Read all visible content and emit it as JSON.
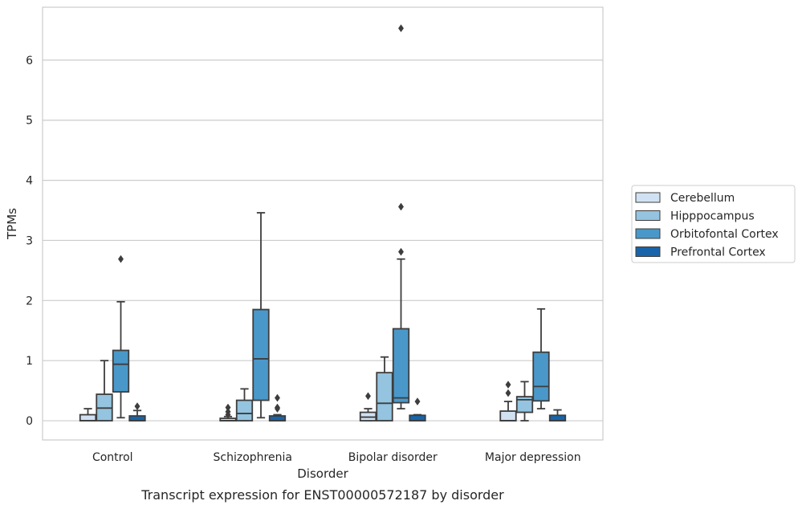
{
  "chart_data": {
    "type": "box",
    "title": "Transcript expression for ENST00000572187 by disorder",
    "xlabel": "Disorder",
    "ylabel": "TPMs",
    "ylim": [
      -0.32,
      6.88
    ],
    "yticks": [
      0,
      1,
      2,
      3,
      4,
      5,
      6
    ],
    "grid": "horizontal",
    "legend_position": "right",
    "categories": [
      "Control",
      "Schizophrenia",
      "Bipolar disorder",
      "Major depression"
    ],
    "series": [
      {
        "name": "Cerebellum",
        "color": "#d0e1f2",
        "boxes": [
          {
            "whislo": 0,
            "q1": 0,
            "med": 0,
            "q3": 0.1,
            "whishi": 0.2,
            "fliers": []
          },
          {
            "whislo": 0,
            "q1": 0,
            "med": 0,
            "q3": 0.04,
            "whishi": 0.07,
            "fliers": [
              0.1,
              0.15,
              0.22
            ]
          },
          {
            "whislo": 0,
            "q1": 0,
            "med": 0.06,
            "q3": 0.14,
            "whishi": 0.2,
            "fliers": [
              0.41
            ]
          },
          {
            "whislo": 0,
            "q1": 0,
            "med": 0,
            "q3": 0.16,
            "whishi": 0.32,
            "fliers": [
              0.46,
              0.6
            ]
          }
        ]
      },
      {
        "name": "Hipppocampus",
        "color": "#94c4df",
        "boxes": [
          {
            "whislo": 0,
            "q1": 0,
            "med": 0.21,
            "q3": 0.44,
            "whishi": 1.0,
            "fliers": []
          },
          {
            "whislo": 0,
            "q1": 0,
            "med": 0.12,
            "q3": 0.34,
            "whishi": 0.53,
            "fliers": []
          },
          {
            "whislo": 0,
            "q1": 0,
            "med": 0.29,
            "q3": 0.8,
            "whishi": 1.06,
            "fliers": []
          },
          {
            "whislo": 0,
            "q1": 0.14,
            "med": 0.35,
            "q3": 0.4,
            "whishi": 0.65,
            "fliers": []
          }
        ]
      },
      {
        "name": "Orbitofontal Cortex",
        "color": "#4a98c9",
        "boxes": [
          {
            "whislo": 0.05,
            "q1": 0.48,
            "med": 0.94,
            "q3": 1.17,
            "whishi": 1.98,
            "fliers": [
              2.69
            ]
          },
          {
            "whislo": 0.05,
            "q1": 0.34,
            "med": 1.03,
            "q3": 1.85,
            "whishi": 3.46,
            "fliers": []
          },
          {
            "whislo": 0.2,
            "q1": 0.3,
            "med": 0.38,
            "q3": 1.53,
            "whishi": 2.69,
            "fliers": [
              2.81,
              3.56,
              6.53
            ]
          },
          {
            "whislo": 0.2,
            "q1": 0.33,
            "med": 0.57,
            "q3": 1.14,
            "whishi": 1.86,
            "fliers": []
          }
        ]
      },
      {
        "name": "Prefrontal Cortex",
        "color": "#1764ab",
        "boxes": [
          {
            "whislo": 0,
            "q1": 0,
            "med": 0,
            "q3": 0.08,
            "whishi": 0.17,
            "fliers": [
              0.24
            ]
          },
          {
            "whislo": 0,
            "q1": 0,
            "med": 0,
            "q3": 0.08,
            "whishi": 0.1,
            "fliers": [
              0.2,
              0.22,
              0.38
            ]
          },
          {
            "whislo": 0,
            "q1": 0,
            "med": 0,
            "q3": 0.09,
            "whishi": 0.1,
            "fliers": [
              0.32
            ]
          },
          {
            "whislo": 0,
            "q1": 0,
            "med": 0,
            "q3": 0.09,
            "whishi": 0.18,
            "fliers": []
          }
        ]
      }
    ]
  }
}
